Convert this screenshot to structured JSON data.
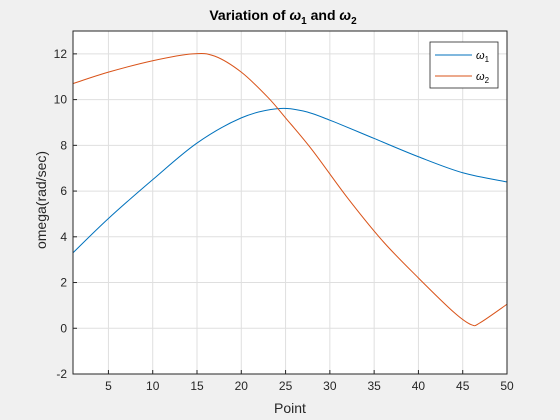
{
  "chart_data": {
    "type": "line",
    "title": {
      "prefix": "Variation of ",
      "sym1": "ω",
      "sub1": "1",
      "mid": " and ",
      "sym2": "ω",
      "sub2": "2"
    },
    "xlabel": "Point",
    "ylabel": "omega(rad/sec)",
    "xlim": [
      1,
      50
    ],
    "ylim": [
      -2,
      13
    ],
    "xticks": [
      5,
      10,
      15,
      20,
      25,
      30,
      35,
      40,
      45,
      50
    ],
    "yticks": [
      -2,
      0,
      2,
      4,
      6,
      8,
      10,
      12
    ],
    "grid": true,
    "legend_position": "top-right",
    "series": [
      {
        "name": "ω",
        "name_sub": "1",
        "color": "#0072BD",
        "x": [
          1,
          5,
          10,
          15,
          20,
          24,
          27,
          30,
          35,
          40,
          45,
          50
        ],
        "y": [
          3.3,
          4.8,
          6.5,
          8.1,
          9.2,
          9.6,
          9.5,
          9.1,
          8.3,
          7.5,
          6.8,
          6.4
        ]
      },
      {
        "name": "ω",
        "name_sub": "2",
        "color": "#D95319",
        "x": [
          1,
          5,
          10,
          14.5,
          17,
          20,
          23,
          25,
          28,
          32,
          36,
          40,
          44,
          46,
          47,
          50
        ],
        "y": [
          10.7,
          11.2,
          11.7,
          12.0,
          11.9,
          11.2,
          10.1,
          9.2,
          7.8,
          5.7,
          3.8,
          2.2,
          0.7,
          0.15,
          0.25,
          1.05
        ]
      }
    ]
  }
}
